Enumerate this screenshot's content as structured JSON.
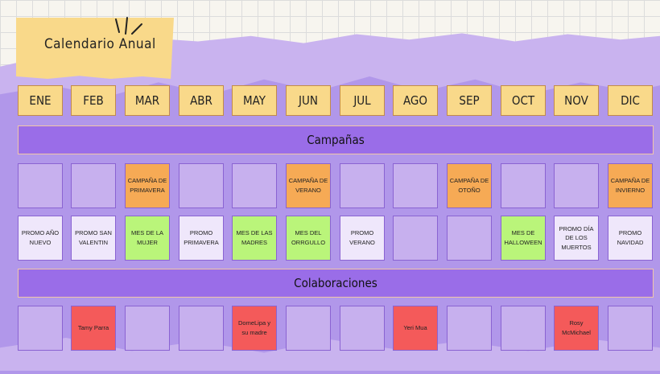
{
  "title": "Calendario Anual",
  "months": [
    "ENE",
    "FEB",
    "MAR",
    "ABR",
    "MAY",
    "JUN",
    "JUL",
    "AGO",
    "SEP",
    "OCT",
    "NOV",
    "DIC"
  ],
  "sections": {
    "campaigns": "Campañas",
    "collaborations": "Colaboraciones"
  },
  "campaigns_row": [
    "",
    "",
    "CAMPAÑA DE PRIMAVERA",
    "",
    "",
    "CAMPAÑA DE VERANO",
    "",
    "",
    "CAMPAÑA DE OTOÑO",
    "",
    "",
    "CAMPAÑA DE INVIERNO"
  ],
  "promos_row": [
    "PROMO AÑO NUEVO",
    "PROMO SAN VALENTIN",
    "MES DE LA MUJER",
    "PROMO PRIMAVERA",
    "MES DE LAS MADRES",
    "MES DEL ORRGULLO",
    "PROMO VERANO",
    "",
    "",
    "MES DE HALLOWEEN",
    "PROMO DÍA DE LOS MUERTOS",
    "PROMO NAVIDAD"
  ],
  "collabs_row": [
    "",
    "Tamy Parra",
    "",
    "",
    "DomeLipa y su madre",
    "",
    "",
    "Yeri Mua",
    "",
    "",
    "Rosy McMichael",
    ""
  ],
  "colors": {
    "lavender": "#c9b3ef",
    "purple_band": "#9a6de8",
    "yellow": "#f9d98a",
    "orange": "#f6aa55",
    "green": "#baf57a",
    "red": "#f45a5a",
    "white": "#efe7fb"
  }
}
